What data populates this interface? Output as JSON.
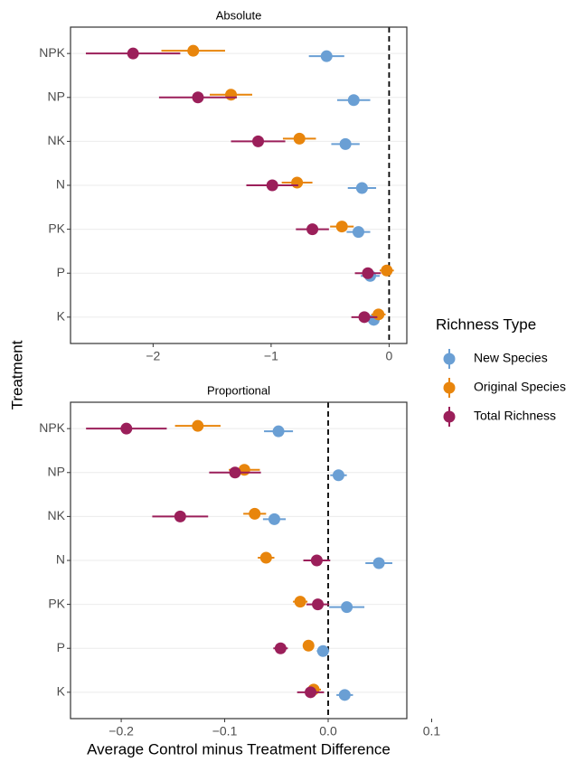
{
  "y_label": "Treatment",
  "x_label": "Average Control minus Treatment Difference",
  "legend_title": "Richness Type",
  "chart_data": [
    {
      "type": "dotwhisker",
      "title": "Absolute",
      "categories": [
        "NPK",
        "NP",
        "NK",
        "N",
        "PK",
        "P",
        "K"
      ],
      "series": [
        {
          "name": "New Species",
          "color": "#6a9fd4",
          "values": [
            -0.53,
            -0.3,
            -0.37,
            -0.23,
            -0.26,
            -0.16,
            -0.13
          ],
          "errors": [
            0.15,
            0.14,
            0.12,
            0.12,
            0.1,
            0.08,
            0.05
          ]
        },
        {
          "name": "Original Species",
          "color": "#e8850c",
          "values": [
            -1.66,
            -1.34,
            -0.76,
            -0.78,
            -0.4,
            -0.02,
            -0.09
          ],
          "errors": [
            0.27,
            0.18,
            0.14,
            0.13,
            0.1,
            0.06,
            0.06
          ]
        },
        {
          "name": "Total Richness",
          "color": "#9b1f5a",
          "values": [
            -2.17,
            -1.62,
            -1.11,
            -0.99,
            -0.65,
            -0.18,
            -0.21
          ],
          "errors": [
            0.4,
            0.33,
            0.23,
            0.22,
            0.14,
            0.11,
            0.11
          ]
        }
      ],
      "xlim": [
        -2.7,
        0.15
      ],
      "xticks": [
        {
          "value": -2,
          "label": "−2"
        },
        {
          "value": -1,
          "label": "−1"
        },
        0
      ],
      "refline": 0,
      "grid": true
    },
    {
      "type": "dotwhisker",
      "title": "Proportional",
      "categories": [
        "NPK",
        "NP",
        "NK",
        "N",
        "PK",
        "P",
        "K"
      ],
      "series": [
        {
          "name": "New Species",
          "color": "#6a9fd4",
          "values": [
            -0.048,
            0.01,
            -0.052,
            0.049,
            0.018,
            -0.005,
            0.016
          ],
          "errors": [
            0.014,
            0.008,
            0.011,
            0.013,
            0.017,
            0.006,
            0.008
          ]
        },
        {
          "name": "Original Species",
          "color": "#e8850c",
          "values": [
            -0.126,
            -0.081,
            -0.071,
            -0.06,
            -0.027,
            -0.019,
            -0.014
          ],
          "errors": [
            0.022,
            0.015,
            0.011,
            0.008,
            0.007,
            0.005,
            0.007
          ]
        },
        {
          "name": "Total Richness",
          "color": "#9b1f5a",
          "values": [
            -0.195,
            -0.09,
            -0.143,
            -0.011,
            -0.01,
            -0.046,
            -0.017
          ],
          "errors": [
            0.039,
            0.025,
            0.027,
            0.013,
            0.011,
            0.007,
            0.013
          ]
        }
      ],
      "xlim": [
        -0.249,
        0.076
      ],
      "xticks": [
        {
          "value": -0.2,
          "label": "−0.2"
        },
        {
          "value": -0.1,
          "label": "−0.1"
        },
        {
          "value": 0,
          "label": "0.0"
        },
        0.1
      ],
      "refline": 0,
      "grid": true
    }
  ]
}
